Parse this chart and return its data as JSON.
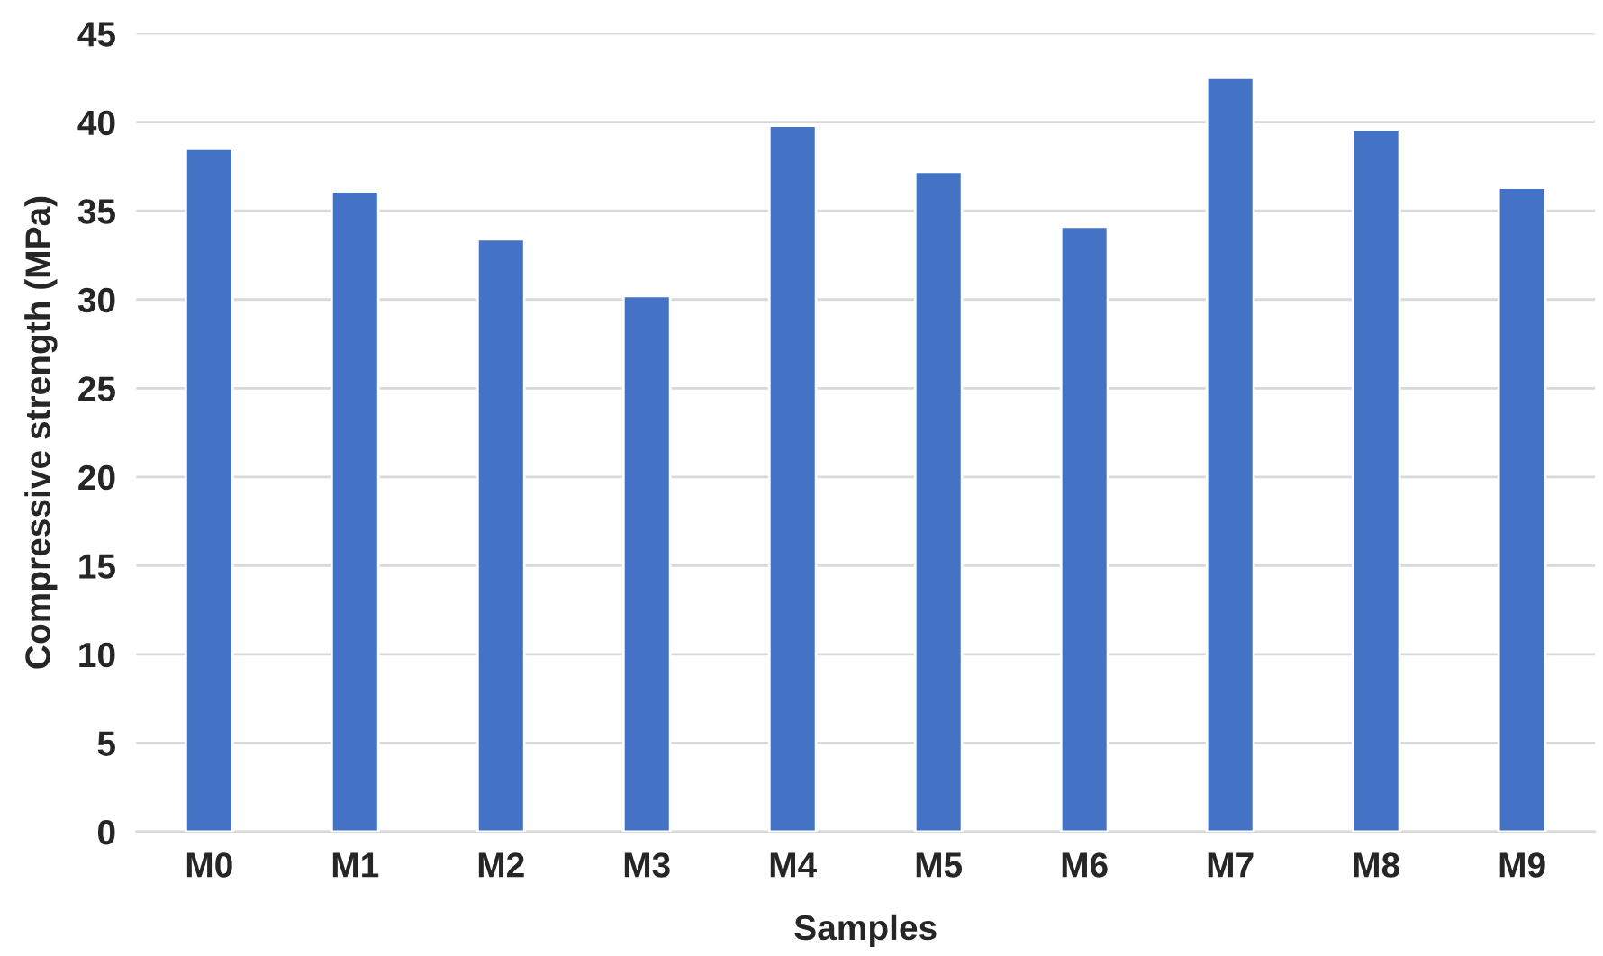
{
  "chart_data": {
    "type": "bar",
    "xlabel": "Samples",
    "ylabel": "Compressive strength (MPa)",
    "categories": [
      "M0",
      "M1",
      "M2",
      "M3",
      "M4",
      "M5",
      "M6",
      "M7",
      "M8",
      "M9"
    ],
    "values": [
      38.5,
      36.1,
      33.4,
      30.2,
      39.8,
      37.2,
      34.1,
      42.5,
      39.6,
      36.3
    ],
    "color": "#4472c4",
    "ylim": [
      0,
      45
    ],
    "yticks": [
      0,
      5,
      10,
      15,
      20,
      25,
      30,
      35,
      40,
      45
    ],
    "grid": "y"
  }
}
